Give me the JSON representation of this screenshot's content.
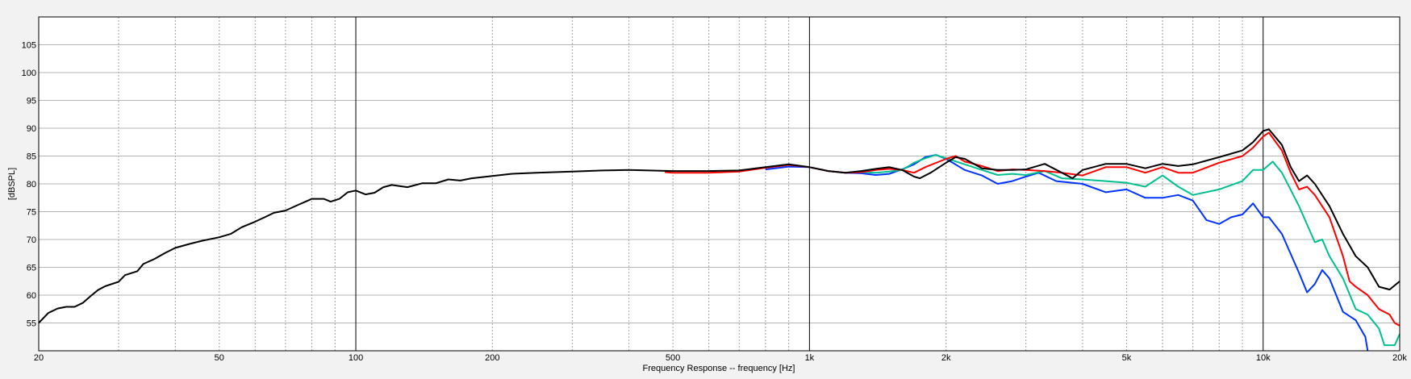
{
  "chart_data": {
    "type": "line",
    "title": "",
    "xlabel": "Frequency Response -- frequency [Hz]",
    "ylabel": "[dBSPL]",
    "x_scale": "log",
    "xlim": [
      20,
      20000
    ],
    "ylim": [
      50,
      110
    ],
    "grid": true,
    "legend": "none",
    "x_ticks": [
      {
        "value": 20,
        "label": "20"
      },
      {
        "value": 50,
        "label": "50"
      },
      {
        "value": 100,
        "label": "100"
      },
      {
        "value": 200,
        "label": "200"
      },
      {
        "value": 500,
        "label": "500"
      },
      {
        "value": 1000,
        "label": "1k"
      },
      {
        "value": 2000,
        "label": "2k"
      },
      {
        "value": 5000,
        "label": "5k"
      },
      {
        "value": 10000,
        "label": "10k"
      },
      {
        "value": 20000,
        "label": "20k"
      }
    ],
    "y_ticks": [
      {
        "value": 55,
        "label": "55"
      },
      {
        "value": 60,
        "label": "60"
      },
      {
        "value": 65,
        "label": "65"
      },
      {
        "value": 70,
        "label": "70"
      },
      {
        "value": 75,
        "label": "75"
      },
      {
        "value": 80,
        "label": "80"
      },
      {
        "value": 85,
        "label": "85"
      },
      {
        "value": 90,
        "label": "90"
      },
      {
        "value": 95,
        "label": "95"
      },
      {
        "value": 100,
        "label": "100"
      },
      {
        "value": 105,
        "label": "105"
      }
    ],
    "series": [
      {
        "color": "#000000",
        "points": [
          [
            20,
            55
          ],
          [
            21,
            56.8
          ],
          [
            22,
            57.6
          ],
          [
            23,
            57.9
          ],
          [
            24,
            57.9
          ],
          [
            25,
            58.6
          ],
          [
            26,
            59.8
          ],
          [
            27,
            60.9
          ],
          [
            28,
            61.6
          ],
          [
            30,
            62.4
          ],
          [
            31,
            63.6
          ],
          [
            33,
            64.3
          ],
          [
            34,
            65.6
          ],
          [
            36,
            66.5
          ],
          [
            38,
            67.6
          ],
          [
            40,
            68.5
          ],
          [
            43,
            69.2
          ],
          [
            46,
            69.8
          ],
          [
            50,
            70.4
          ],
          [
            53,
            71.0
          ],
          [
            56,
            72.2
          ],
          [
            60,
            73.2
          ],
          [
            63,
            74.0
          ],
          [
            66,
            74.8
          ],
          [
            70,
            75.2
          ],
          [
            75,
            76.3
          ],
          [
            80,
            77.3
          ],
          [
            85,
            77.3
          ],
          [
            88,
            76.8
          ],
          [
            92,
            77.3
          ],
          [
            96,
            78.5
          ],
          [
            100,
            78.8
          ],
          [
            105,
            78.1
          ],
          [
            110,
            78.4
          ],
          [
            115,
            79.4
          ],
          [
            120,
            79.8
          ],
          [
            130,
            79.4
          ],
          [
            140,
            80.1
          ],
          [
            150,
            80.1
          ],
          [
            160,
            80.8
          ],
          [
            170,
            80.6
          ],
          [
            180,
            81.0
          ],
          [
            200,
            81.4
          ],
          [
            220,
            81.8
          ],
          [
            250,
            82.0
          ],
          [
            300,
            82.2
          ],
          [
            350,
            82.4
          ],
          [
            400,
            82.5
          ],
          [
            500,
            82.3
          ],
          [
            600,
            82.3
          ],
          [
            700,
            82.4
          ],
          [
            800,
            83.0
          ],
          [
            900,
            83.5
          ],
          [
            1000,
            83.0
          ],
          [
            1100,
            82.3
          ],
          [
            1200,
            82.0
          ],
          [
            1300,
            82.3
          ],
          [
            1400,
            82.7
          ],
          [
            1500,
            83.0
          ],
          [
            1600,
            82.5
          ],
          [
            1700,
            81.3
          ],
          [
            1750,
            81.0
          ],
          [
            1850,
            82.0
          ],
          [
            2000,
            83.8
          ],
          [
            2100,
            84.8
          ],
          [
            2200,
            84.5
          ],
          [
            2400,
            82.8
          ],
          [
            2600,
            82.5
          ],
          [
            2800,
            82.5
          ],
          [
            3000,
            82.6
          ],
          [
            3300,
            83.6
          ],
          [
            3600,
            82.0
          ],
          [
            3800,
            81.0
          ],
          [
            4000,
            82.5
          ],
          [
            4500,
            83.6
          ],
          [
            5000,
            83.6
          ],
          [
            5500,
            82.8
          ],
          [
            6000,
            83.6
          ],
          [
            6500,
            83.2
          ],
          [
            7000,
            83.5
          ],
          [
            8000,
            84.8
          ],
          [
            9000,
            86.0
          ],
          [
            9500,
            87.5
          ],
          [
            10000,
            89.5
          ],
          [
            10300,
            89.8
          ],
          [
            11000,
            87.0
          ],
          [
            11500,
            83.0
          ],
          [
            12000,
            80.5
          ],
          [
            12500,
            81.5
          ],
          [
            13000,
            80.0
          ],
          [
            14000,
            76.0
          ],
          [
            15000,
            71.0
          ],
          [
            16000,
            67.0
          ],
          [
            17000,
            65.0
          ],
          [
            18000,
            61.5
          ],
          [
            19000,
            61.0
          ],
          [
            20000,
            62.5
          ]
        ]
      },
      {
        "color": "#ff0000",
        "points": [
          [
            480,
            82.1
          ],
          [
            500,
            82.0
          ],
          [
            600,
            82.0
          ],
          [
            700,
            82.2
          ],
          [
            800,
            82.9
          ],
          [
            900,
            83.4
          ],
          [
            1000,
            83.0
          ],
          [
            1100,
            82.3
          ],
          [
            1200,
            82.0
          ],
          [
            1300,
            82.1
          ],
          [
            1400,
            82.5
          ],
          [
            1500,
            82.7
          ],
          [
            1600,
            82.5
          ],
          [
            1700,
            82.0
          ],
          [
            1800,
            83.0
          ],
          [
            2000,
            84.5
          ],
          [
            2100,
            85.0
          ],
          [
            2200,
            84.0
          ],
          [
            2400,
            83.2
          ],
          [
            2600,
            82.3
          ],
          [
            2800,
            82.6
          ],
          [
            3000,
            82.5
          ],
          [
            3300,
            82.3
          ],
          [
            3600,
            82.0
          ],
          [
            4000,
            81.5
          ],
          [
            4500,
            83.0
          ],
          [
            5000,
            83.0
          ],
          [
            5500,
            82.0
          ],
          [
            6000,
            83.0
          ],
          [
            6500,
            82.0
          ],
          [
            7000,
            82.0
          ],
          [
            8000,
            83.8
          ],
          [
            9000,
            85.0
          ],
          [
            9500,
            86.5
          ],
          [
            10000,
            88.5
          ],
          [
            10300,
            89.2
          ],
          [
            11000,
            86.0
          ],
          [
            11500,
            82.0
          ],
          [
            12000,
            79.0
          ],
          [
            12500,
            79.5
          ],
          [
            13000,
            78.0
          ],
          [
            14000,
            74.0
          ],
          [
            15000,
            67.0
          ],
          [
            15500,
            62.5
          ],
          [
            16000,
            61.5
          ],
          [
            17000,
            60.0
          ],
          [
            18000,
            57.5
          ],
          [
            19000,
            56.5
          ],
          [
            19500,
            55.0
          ],
          [
            20000,
            54.5
          ]
        ]
      },
      {
        "color": "#00c090",
        "points": [
          [
            1200,
            82.0
          ],
          [
            1300,
            82.1
          ],
          [
            1400,
            82.0
          ],
          [
            1500,
            82.2
          ],
          [
            1600,
            82.5
          ],
          [
            1700,
            83.8
          ],
          [
            1800,
            84.6
          ],
          [
            1900,
            85.2
          ],
          [
            2000,
            84.6
          ],
          [
            2200,
            83.5
          ],
          [
            2400,
            82.5
          ],
          [
            2600,
            81.6
          ],
          [
            2800,
            81.8
          ],
          [
            3000,
            81.6
          ],
          [
            3300,
            82.3
          ],
          [
            3600,
            81.0
          ],
          [
            4000,
            80.8
          ],
          [
            4500,
            80.5
          ],
          [
            5000,
            80.2
          ],
          [
            5500,
            79.5
          ],
          [
            6000,
            81.5
          ],
          [
            6500,
            79.5
          ],
          [
            7000,
            78.0
          ],
          [
            8000,
            79.0
          ],
          [
            9000,
            80.5
          ],
          [
            9500,
            82.5
          ],
          [
            10000,
            82.5
          ],
          [
            10500,
            84.0
          ],
          [
            11000,
            82.0
          ],
          [
            12000,
            76.0
          ],
          [
            13000,
            69.5
          ],
          [
            13500,
            70.0
          ],
          [
            14000,
            67.0
          ],
          [
            15000,
            63.0
          ],
          [
            16000,
            57.5
          ],
          [
            17000,
            56.5
          ],
          [
            18000,
            54.0
          ],
          [
            18500,
            51.0
          ],
          [
            19500,
            51.0
          ],
          [
            20000,
            53.0
          ]
        ]
      },
      {
        "color": "#0033ff",
        "points": [
          [
            800,
            82.6
          ],
          [
            900,
            83.1
          ],
          [
            1000,
            83.0
          ],
          [
            1100,
            82.3
          ],
          [
            1200,
            82.0
          ],
          [
            1300,
            81.9
          ],
          [
            1400,
            81.6
          ],
          [
            1500,
            81.8
          ],
          [
            1600,
            82.6
          ],
          [
            1700,
            83.5
          ],
          [
            1800,
            84.8
          ],
          [
            1900,
            85.2
          ],
          [
            2000,
            84.5
          ],
          [
            2200,
            82.5
          ],
          [
            2400,
            81.5
          ],
          [
            2600,
            80.0
          ],
          [
            2800,
            80.5
          ],
          [
            3000,
            81.3
          ],
          [
            3200,
            82.0
          ],
          [
            3500,
            80.5
          ],
          [
            4000,
            80.0
          ],
          [
            4500,
            78.5
          ],
          [
            5000,
            79.0
          ],
          [
            5500,
            77.5
          ],
          [
            6000,
            77.5
          ],
          [
            6500,
            78.0
          ],
          [
            7000,
            77.0
          ],
          [
            7500,
            73.5
          ],
          [
            8000,
            72.8
          ],
          [
            8500,
            74.0
          ],
          [
            9000,
            74.5
          ],
          [
            9500,
            76.5
          ],
          [
            10000,
            74.0
          ],
          [
            10300,
            74.0
          ],
          [
            11000,
            71.0
          ],
          [
            12000,
            64.0
          ],
          [
            12500,
            60.5
          ],
          [
            13000,
            62.0
          ],
          [
            13500,
            64.5
          ],
          [
            14000,
            63.0
          ],
          [
            15000,
            57.0
          ],
          [
            16000,
            55.5
          ],
          [
            16800,
            52.5
          ],
          [
            17000,
            50.0
          ]
        ]
      }
    ]
  }
}
